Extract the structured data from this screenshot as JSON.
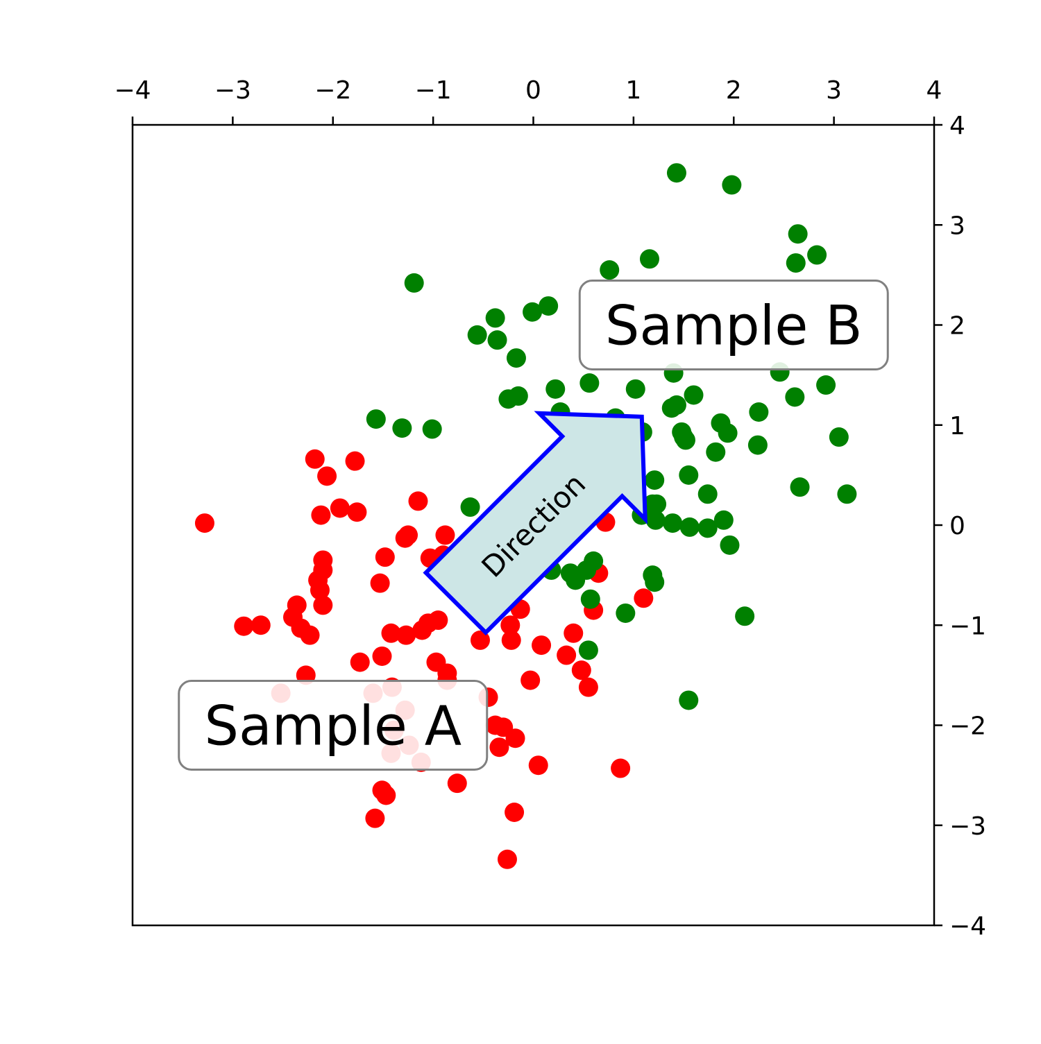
{
  "chart_data": {
    "type": "scatter",
    "xlim": [
      -4,
      4
    ],
    "ylim": [
      -4,
      4
    ],
    "x_ticks": [
      -4,
      -3,
      -2,
      -1,
      0,
      1,
      2,
      3,
      4
    ],
    "y_ticks": [
      -4,
      -3,
      -2,
      -1,
      0,
      1,
      2,
      3,
      4
    ],
    "x_tick_labels": [
      "−4",
      "−3",
      "−2",
      "−1",
      "0",
      "1",
      "2",
      "3",
      "4"
    ],
    "y_tick_labels": [
      "−4",
      "−3",
      "−2",
      "−1",
      "0",
      "1",
      "2",
      "3",
      "4"
    ],
    "x_axis_position": "top",
    "y_axis_position": "right",
    "grid": false,
    "series": [
      {
        "color": "#ff0000",
        "points": [
          [
            -3.28,
            0.02
          ],
          [
            -2.18,
            0.66
          ],
          [
            -2.06,
            0.49
          ],
          [
            -1.78,
            0.64
          ],
          [
            -1.93,
            0.17
          ],
          [
            -1.76,
            0.13
          ],
          [
            -2.12,
            0.1
          ],
          [
            -2.1,
            -0.35
          ],
          [
            -2.15,
            -0.55
          ],
          [
            -2.1,
            -0.45
          ],
          [
            -2.13,
            -0.65
          ],
          [
            -2.1,
            -0.8
          ],
          [
            -2.36,
            -0.8
          ],
          [
            -2.4,
            -0.92
          ],
          [
            -2.32,
            -1.03
          ],
          [
            -2.23,
            -1.1
          ],
          [
            -2.89,
            -1.01
          ],
          [
            -2.72,
            -1.0
          ],
          [
            -2.27,
            -1.5
          ],
          [
            -2.52,
            -1.68
          ],
          [
            -1.6,
            -1.68
          ],
          [
            -1.41,
            -1.62
          ],
          [
            -1.28,
            -1.85
          ],
          [
            -1.39,
            -2.05
          ],
          [
            -1.24,
            -2.2
          ],
          [
            -1.12,
            -2.37
          ],
          [
            -1.42,
            -2.28
          ],
          [
            -1.51,
            -1.31
          ],
          [
            -1.58,
            -2.93
          ],
          [
            -1.47,
            -2.7
          ],
          [
            -1.51,
            -2.65
          ],
          [
            -0.86,
            -1.48
          ],
          [
            -0.86,
            -1.55
          ],
          [
            -0.97,
            -1.37
          ],
          [
            -0.76,
            -2.58
          ],
          [
            -0.53,
            -1.15
          ],
          [
            -0.45,
            -1.72
          ],
          [
            -0.38,
            -2.0
          ],
          [
            -0.3,
            -2.02
          ],
          [
            -0.34,
            -2.22
          ],
          [
            -0.18,
            -2.13
          ],
          [
            -0.19,
            -2.87
          ],
          [
            -0.26,
            -3.34
          ],
          [
            0.05,
            -2.4
          ],
          [
            -0.03,
            -1.55
          ],
          [
            0.08,
            -1.2
          ],
          [
            0.33,
            -1.3
          ],
          [
            0.4,
            -1.08
          ],
          [
            0.48,
            -1.45
          ],
          [
            0.55,
            -1.62
          ],
          [
            0.6,
            -0.85
          ],
          [
            0.65,
            -0.48
          ],
          [
            0.72,
            0.03
          ],
          [
            1.1,
            -0.73
          ],
          [
            0.87,
            -2.43
          ],
          [
            -1.15,
            0.24
          ],
          [
            -1.28,
            -0.13
          ],
          [
            -1.25,
            -0.1
          ],
          [
            -0.88,
            -0.1
          ],
          [
            -1.48,
            -0.32
          ],
          [
            -1.53,
            -0.58
          ],
          [
            -1.42,
            -1.08
          ],
          [
            -1.27,
            -1.1
          ],
          [
            -1.11,
            -1.05
          ],
          [
            -1.05,
            -0.98
          ],
          [
            -0.95,
            -0.95
          ],
          [
            -1.03,
            -0.33
          ],
          [
            -0.9,
            -0.3
          ],
          [
            -0.23,
            -1.0
          ],
          [
            -0.22,
            -1.15
          ],
          [
            -0.13,
            -0.84
          ],
          [
            -0.45,
            -0.9
          ],
          [
            -1.73,
            -1.37
          ]
        ]
      },
      {
        "color": "#008000",
        "points": [
          [
            1.43,
            3.52
          ],
          [
            1.98,
            3.4
          ],
          [
            2.64,
            2.91
          ],
          [
            2.83,
            2.7
          ],
          [
            2.62,
            2.62
          ],
          [
            1.16,
            2.66
          ],
          [
            0.76,
            2.55
          ],
          [
            -1.19,
            2.42
          ],
          [
            0.15,
            2.19
          ],
          [
            -0.01,
            2.13
          ],
          [
            -0.38,
            2.07
          ],
          [
            -0.56,
            1.9
          ],
          [
            -0.36,
            1.85
          ],
          [
            -0.17,
            1.67
          ],
          [
            0.22,
            1.36
          ],
          [
            0.56,
            1.42
          ],
          [
            1.02,
            1.36
          ],
          [
            1.4,
            1.52
          ],
          [
            1.6,
            1.3
          ],
          [
            2.46,
            1.53
          ],
          [
            2.92,
            1.4
          ],
          [
            2.61,
            1.28
          ],
          [
            -0.15,
            1.29
          ],
          [
            -0.25,
            1.26
          ],
          [
            0.27,
            1.13
          ],
          [
            1.38,
            1.17
          ],
          [
            1.43,
            1.2
          ],
          [
            2.25,
            1.13
          ],
          [
            -1.57,
            1.06
          ],
          [
            -1.31,
            0.97
          ],
          [
            -1.01,
            0.96
          ],
          [
            0.82,
            1.07
          ],
          [
            1.09,
            0.93
          ],
          [
            1.48,
            0.93
          ],
          [
            1.5,
            0.88
          ],
          [
            1.52,
            0.85
          ],
          [
            1.87,
            1.02
          ],
          [
            1.94,
            0.92
          ],
          [
            3.05,
            0.88
          ],
          [
            1.82,
            0.73
          ],
          [
            2.24,
            0.8
          ],
          [
            1.21,
            0.45
          ],
          [
            1.55,
            0.5
          ],
          [
            2.66,
            0.38
          ],
          [
            3.13,
            0.31
          ],
          [
            1.74,
            0.31
          ],
          [
            1.19,
            0.21
          ],
          [
            1.23,
            0.21
          ],
          [
            1.08,
            0.1
          ],
          [
            1.22,
            0.05
          ],
          [
            1.39,
            0.02
          ],
          [
            1.56,
            -0.02
          ],
          [
            1.74,
            -0.03
          ],
          [
            1.9,
            0.05
          ],
          [
            1.96,
            -0.2
          ],
          [
            -0.63,
            0.18
          ],
          [
            0.18,
            -0.45
          ],
          [
            0.37,
            -0.48
          ],
          [
            0.42,
            -0.55
          ],
          [
            0.53,
            -0.45
          ],
          [
            0.6,
            -0.36
          ],
          [
            0.57,
            -0.74
          ],
          [
            1.19,
            -0.5
          ],
          [
            1.21,
            -0.57
          ],
          [
            0.92,
            -0.88
          ],
          [
            2.11,
            -0.91
          ],
          [
            0.55,
            -1.25
          ],
          [
            1.55,
            -1.75
          ]
        ]
      }
    ],
    "annotations": [
      {
        "text": "Sample A",
        "x": -2.0,
        "y": -2.0
      },
      {
        "text": "Sample B",
        "x": 2.0,
        "y": 2.0
      },
      {
        "text": "Direction",
        "x": 0.0,
        "y": 0.0,
        "rotation": 45
      }
    ]
  },
  "colors": {
    "label_box_edge": "#808080",
    "arrow_fill": "#cde6e6",
    "arrow_edge": "#0000ff"
  }
}
